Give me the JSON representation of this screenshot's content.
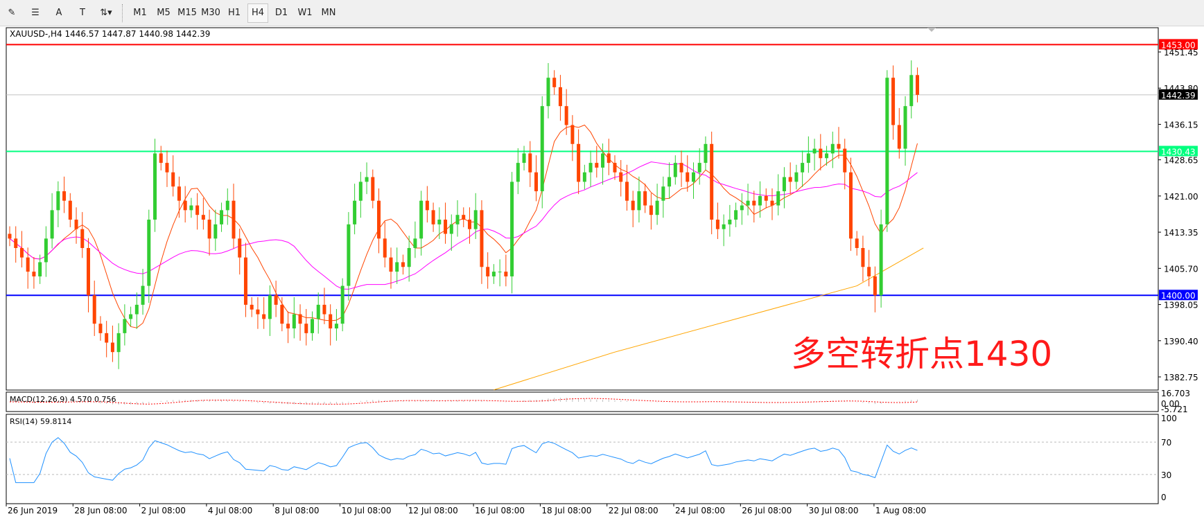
{
  "toolbar": {
    "tools": [
      {
        "icon": "elliott-wave-icon",
        "glyph": "✎"
      },
      {
        "icon": "fibonacci-lines-icon",
        "glyph": "☰"
      },
      {
        "icon": "text-icon",
        "glyph": "A"
      },
      {
        "icon": "text-label-icon",
        "glyph": "T"
      },
      {
        "icon": "arrows-dropdown-icon",
        "glyph": "⇅▾"
      }
    ],
    "timeframes": [
      "M1",
      "M5",
      "M15",
      "M30",
      "H1",
      "H4",
      "D1",
      "W1",
      "MN"
    ],
    "active_timeframe": "H4"
  },
  "chart_data": {
    "type": "candlestick",
    "title": "XAUUSD-,H4  1446.57 1447.87 1440.98 1442.39",
    "symbol": "XAUUSD-",
    "timeframe": "H4",
    "ylim": [
      1379,
      1455
    ],
    "yticks": [
      "1451.45",
      "1443.80",
      "1436.15",
      "1428.65",
      "1421.00",
      "1413.35",
      "1405.70",
      "1398.05",
      "1390.40",
      "1382.75"
    ],
    "xticks": [
      "26 Jun 2019",
      "28 Jun 08:00",
      "2 Jul 08:00",
      "4 Jul 08:00",
      "8 Jul 08:00",
      "10 Jul 08:00",
      "12 Jul 08:00",
      "16 Jul 08:00",
      "18 Jul 08:00",
      "22 Jul 08:00",
      "24 Jul 08:00",
      "26 Jul 08:00",
      "30 Jul 08:00",
      "1 Aug 08:00"
    ],
    "closes": [
      1412,
      1410,
      1408,
      1405,
      1404,
      1407,
      1412,
      1418,
      1422,
      1420,
      1416,
      1414,
      1410,
      1400,
      1394,
      1392,
      1390,
      1388,
      1392,
      1395,
      1396,
      1398,
      1402,
      1416,
      1430,
      1428,
      1426,
      1423,
      1420,
      1418,
      1419,
      1417,
      1416,
      1412,
      1415,
      1418,
      1420,
      1412,
      1408,
      1398,
      1397,
      1396,
      1395,
      1400,
      1398,
      1394,
      1393,
      1396,
      1394,
      1392,
      1395,
      1398,
      1396,
      1393,
      1394,
      1402,
      1415,
      1420,
      1424,
      1425,
      1420,
      1412,
      1408,
      1405,
      1407,
      1406,
      1410,
      1412,
      1420,
      1418,
      1415,
      1416,
      1413,
      1415,
      1417,
      1416,
      1414,
      1418,
      1406,
      1404,
      1405,
      1405,
      1404,
      1424,
      1428,
      1430,
      1426,
      1422,
      1440,
      1446,
      1444,
      1440,
      1436,
      1432,
      1424,
      1426,
      1428,
      1427,
      1430,
      1428,
      1426,
      1424,
      1420,
      1418,
      1422,
      1419,
      1417,
      1420,
      1423,
      1425,
      1428,
      1426,
      1424,
      1426,
      1428,
      1432,
      1416,
      1414,
      1415,
      1416,
      1418,
      1419,
      1420,
      1419,
      1421,
      1420,
      1419,
      1422,
      1425,
      1424,
      1426,
      1428,
      1430,
      1431,
      1429,
      1430,
      1432,
      1431,
      1426,
      1412,
      1410,
      1406,
      1404,
      1400,
      1415,
      1446,
      1436,
      1431,
      1440,
      1446.57,
      1442.39
    ],
    "ma_long": [
      [
        80,
        1380
      ],
      [
        100,
        1388
      ],
      [
        120,
        1395
      ],
      [
        140,
        1402
      ],
      [
        151,
        1410
      ]
    ],
    "levels": [
      {
        "price": "1453.00",
        "color": "#ff0000"
      },
      {
        "price": "1430.43",
        "color": "#00ff7f"
      },
      {
        "price": "1400.00",
        "color": "#0000ff"
      }
    ],
    "current_price": "1442.39",
    "bull_color": "#32cd32",
    "bear_color": "#ff4500",
    "annotation": "多空转折点1430",
    "macd": {
      "label": "MACD(12,26,9) 4.570 0.756",
      "ticks": [
        "16.703",
        "0.00",
        "-5.721"
      ]
    },
    "rsi": {
      "label": "RSI(14) 59.8114",
      "ticks": [
        "100",
        "70",
        "30",
        "0"
      ],
      "color": "#1e90ff"
    }
  }
}
